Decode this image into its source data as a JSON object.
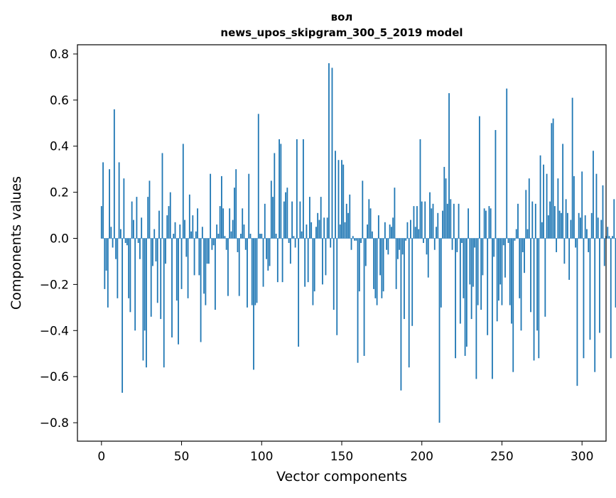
{
  "chart_data": {
    "type": "bar",
    "title": "вол",
    "subtitle": "news_upos_skipgram_300_5_2019 model",
    "xlabel": "Vector components",
    "ylabel": "Components values",
    "xlim": [
      -15,
      315
    ],
    "ylim": [
      -0.88,
      0.84
    ],
    "xticks": [
      0,
      50,
      100,
      150,
      200,
      250,
      300
    ],
    "xtick_labels": [
      "0",
      "50",
      "100",
      "150",
      "200",
      "250",
      "300"
    ],
    "yticks": [
      -0.8,
      -0.6,
      -0.4,
      -0.2,
      0.0,
      0.2,
      0.4,
      0.6,
      0.8
    ],
    "ytick_labels": [
      "−0.8",
      "−0.6",
      "−0.4",
      "−0.2",
      "0.0",
      "0.2",
      "0.4",
      "0.6",
      "0.8"
    ],
    "grid": false,
    "bar_color": "#1f77b4",
    "series": [
      {
        "values": [
          0.14,
          0.33,
          -0.22,
          -0.14,
          -0.3,
          0.3,
          0.05,
          -0.04,
          0.56,
          -0.09,
          -0.26,
          0.33,
          0.04,
          -0.67,
          0.26,
          -0.02,
          -0.03,
          -0.26,
          -0.32,
          0.16,
          0.08,
          -0.4,
          0.18,
          -0.02,
          -0.09,
          0.09,
          -0.53,
          -0.4,
          -0.56,
          0.18,
          0.25,
          -0.34,
          -0.12,
          0.04,
          -0.1,
          -0.28,
          0.12,
          -0.35,
          0.37,
          -0.56,
          -0.11,
          0.1,
          0.14,
          0.2,
          -0.43,
          0.02,
          0.07,
          -0.27,
          -0.46,
          0.06,
          -0.22,
          0.41,
          0.08,
          -0.08,
          -0.26,
          0.19,
          0.03,
          0.1,
          -0.16,
          0.03,
          0.13,
          -0.16,
          -0.45,
          0.05,
          -0.24,
          -0.29,
          -0.11,
          -0.11,
          0.28,
          -0.05,
          -0.03,
          -0.31,
          0.06,
          0.02,
          0.14,
          0.27,
          0.13,
          0.01,
          -0.05,
          -0.25,
          0.13,
          0.03,
          0.08,
          0.22,
          0.3,
          -0.06,
          -0.25,
          0.02,
          0.13,
          0.06,
          -0.05,
          -0.3,
          0.28,
          0.02,
          -0.29,
          -0.57,
          -0.29,
          -0.28,
          0.54,
          0.02,
          0.02,
          -0.21,
          0.15,
          -0.09,
          -0.14,
          -0.12,
          0.25,
          0.18,
          0.37,
          0.02,
          -0.19,
          0.43,
          0.41,
          -0.19,
          0.16,
          0.2,
          0.22,
          -0.02,
          -0.11,
          0.16,
          0.01,
          -0.04,
          0.43,
          -0.47,
          0.16,
          0.03,
          0.43,
          -0.21,
          0.06,
          -0.19,
          0.18,
          0.07,
          -0.29,
          -0.23,
          0.05,
          0.11,
          0.08,
          0.18,
          -0.2,
          0.09,
          -0.16,
          0.09,
          0.76,
          -0.04,
          0.74,
          -0.31,
          0.38,
          -0.42,
          0.34,
          0.06,
          0.34,
          0.32,
          0.07,
          0.15,
          0.11,
          0.19,
          -0.05,
          0.01,
          -0.01,
          -0.01,
          -0.54,
          -0.23,
          -0.02,
          0.25,
          -0.51,
          -0.12,
          0.06,
          0.17,
          0.13,
          0.03,
          -0.22,
          -0.26,
          -0.29,
          0.1,
          -0.16,
          -0.26,
          -0.23,
          0.07,
          -0.05,
          -0.07,
          0.06,
          0.05,
          0.09,
          0.22,
          -0.22,
          -0.09,
          -0.05,
          -0.66,
          -0.07,
          -0.35,
          -0.01,
          0.07,
          -0.56,
          0.08,
          -0.38,
          0.14,
          0.05,
          0.14,
          0.04,
          0.43,
          0.16,
          -0.02,
          0.16,
          -0.07,
          -0.17,
          0.2,
          0.13,
          0.15,
          -0.05,
          0.05,
          0.11,
          -0.8,
          -0.3,
          0.12,
          0.31,
          0.26,
          0.15,
          0.63,
          0.17,
          -0.05,
          0.15,
          -0.52,
          -0.06,
          0.15,
          -0.37,
          -0.02,
          -0.26,
          -0.51,
          -0.47,
          0.13,
          -0.2,
          -0.35,
          -0.21,
          -0.04,
          -0.61,
          -0.29,
          0.53,
          -0.31,
          -0.16,
          0.13,
          0.12,
          -0.42,
          0.14,
          0.13,
          -0.61,
          -0.08,
          0.47,
          -0.36,
          -0.27,
          -0.2,
          -0.29,
          -0.03,
          -0.17,
          0.65,
          -0.02,
          -0.29,
          -0.37,
          -0.58,
          -0.01,
          0.04,
          0.15,
          -0.26,
          -0.4,
          -0.06,
          -0.15,
          0.21,
          0.04,
          0.26,
          -0.32,
          0.16,
          -0.53,
          0.15,
          -0.4,
          -0.52,
          0.36,
          0.07,
          0.32,
          -0.34,
          0.28,
          0.1,
          0.16,
          0.5,
          0.52,
          0.14,
          -0.06,
          0.26,
          0.12,
          0.11,
          0.41,
          -0.11,
          0.17,
          0.11,
          -0.18,
          0.08,
          0.61,
          0.27,
          -0.04,
          -0.64,
          0.11,
          0.09,
          0.29,
          -0.52,
          0.1,
          0.04,
          -0.06,
          -0.44,
          0.11,
          0.38,
          -0.58,
          0.28,
          0.09,
          -0.41,
          0.08,
          0.23,
          -0.12,
          0.01,
          0.05,
          0.01,
          -0.52,
          0.01,
          0.17,
          -0.3
        ]
      }
    ]
  }
}
